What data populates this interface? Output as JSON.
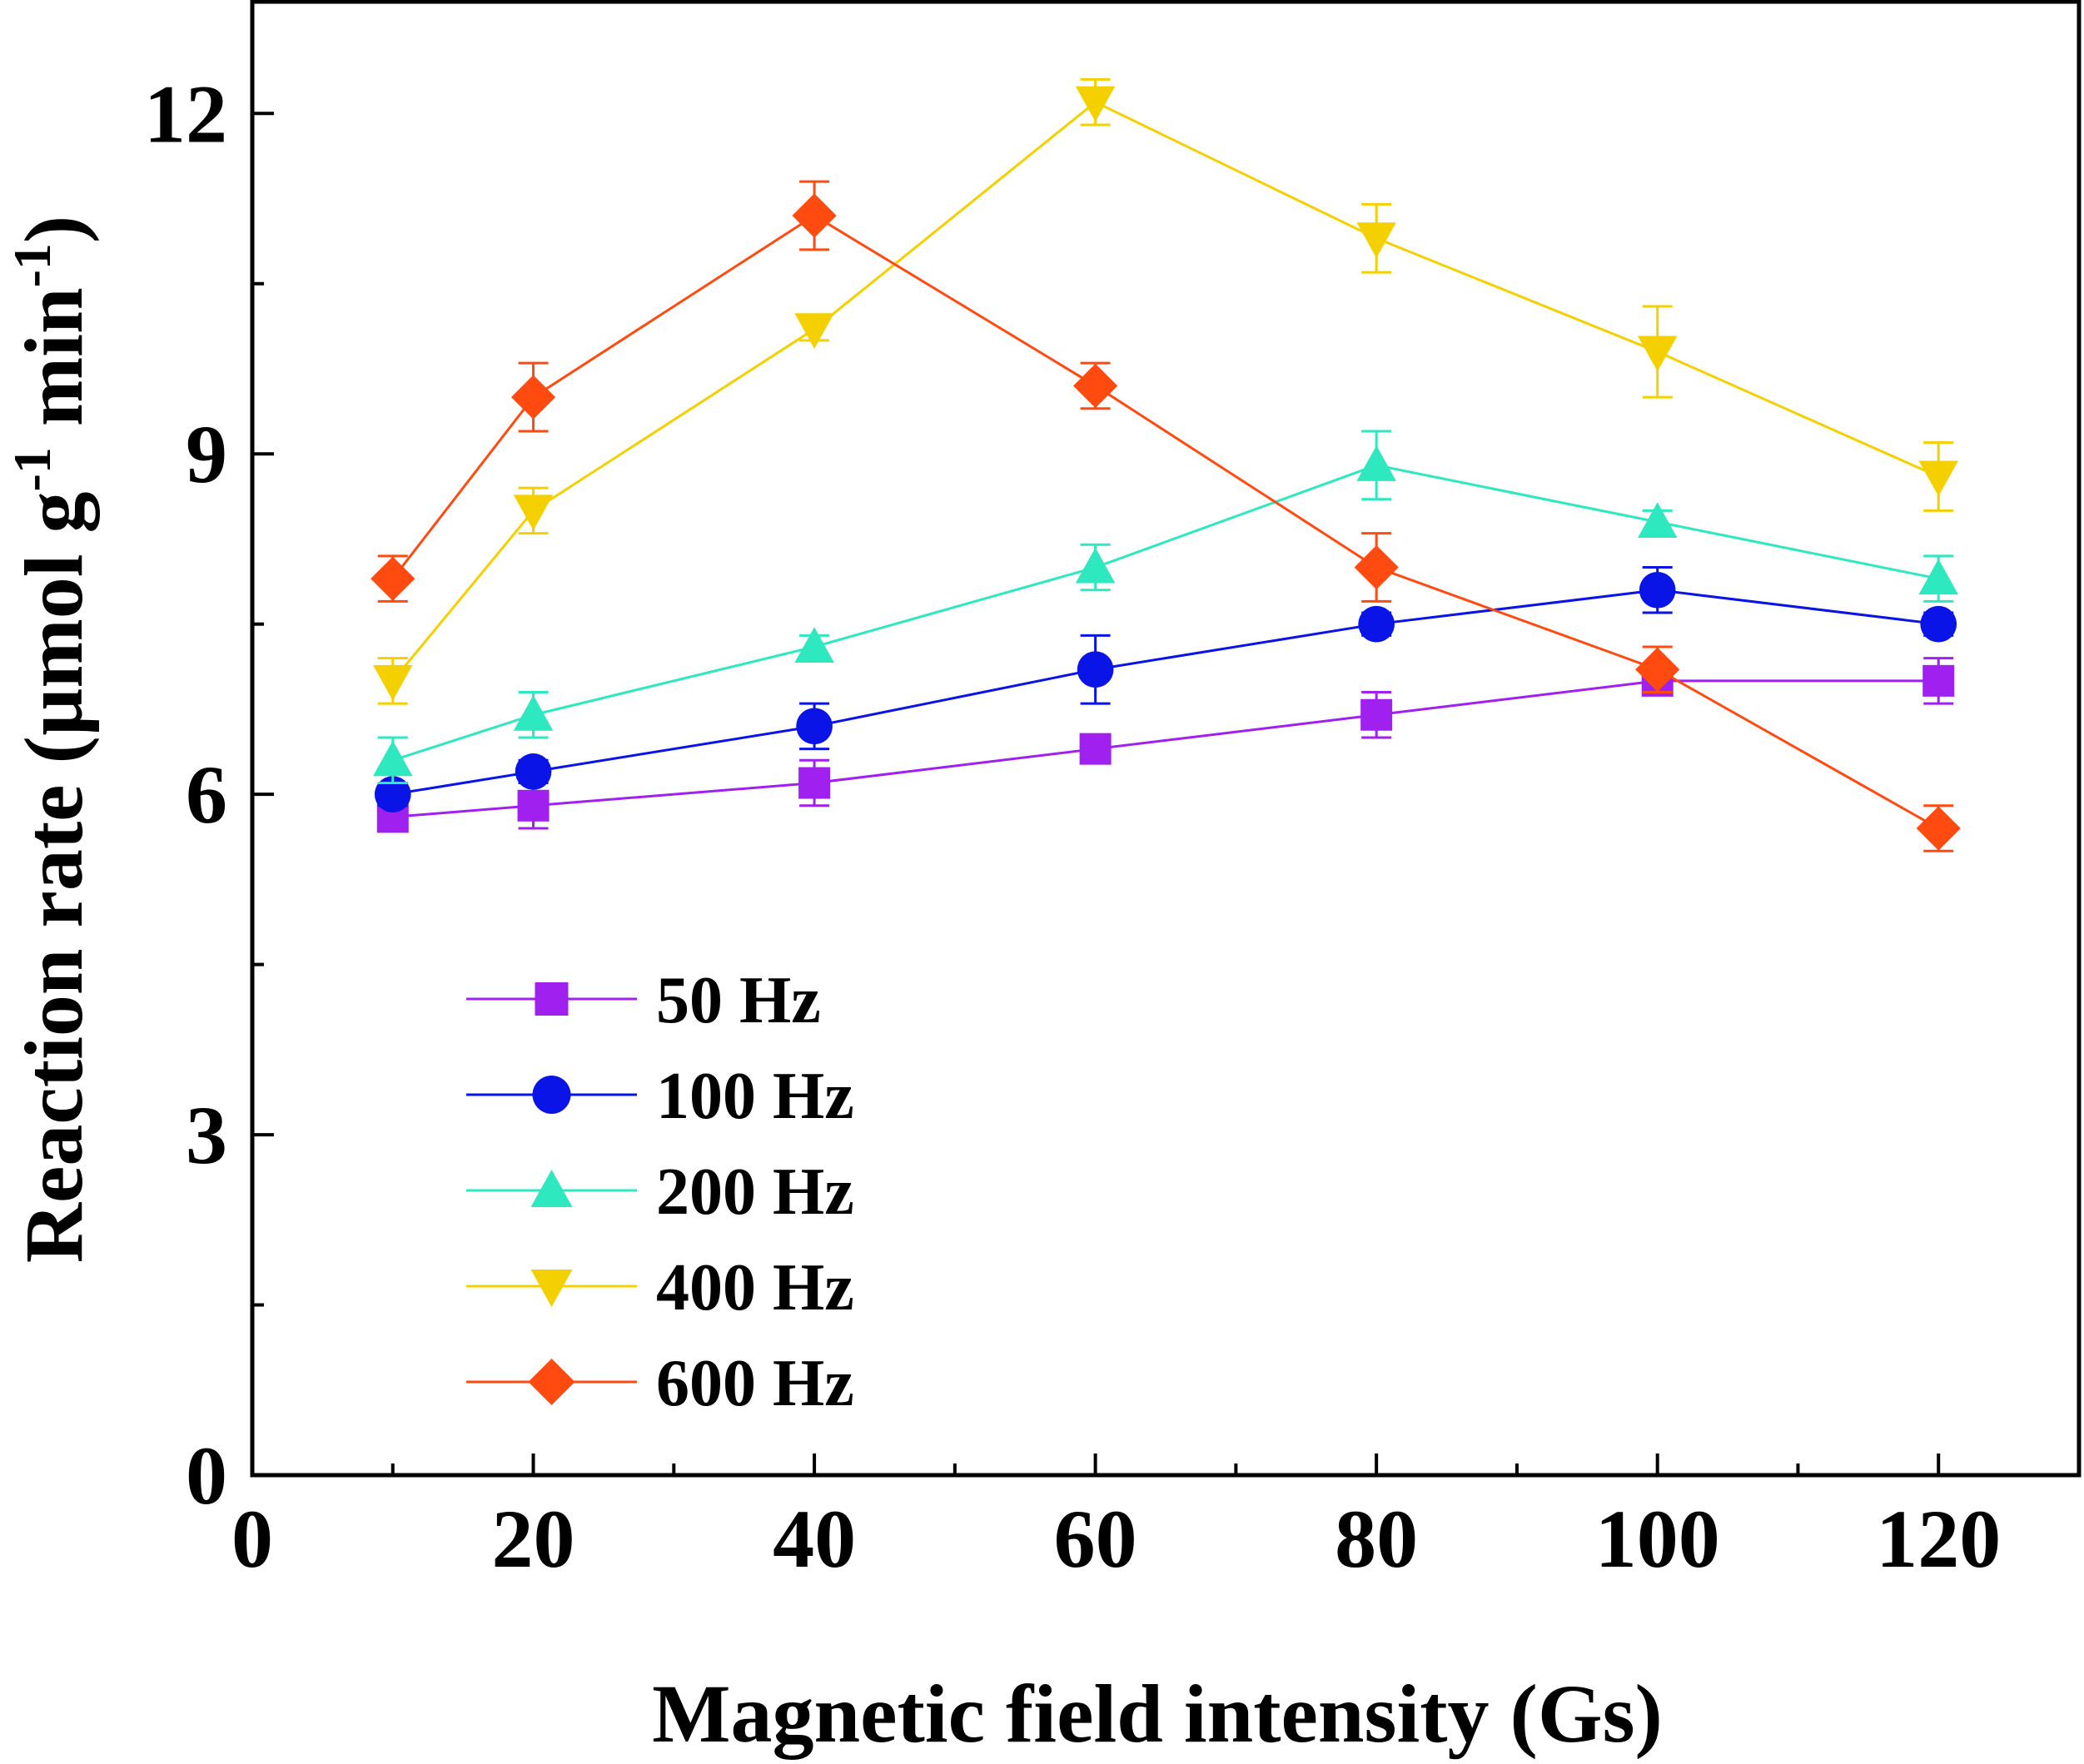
{
  "chart_data": {
    "type": "line",
    "title": "",
    "xlabel": "Magnetic field intensity (Gs)",
    "ylabel_main": "Reaction rate (µmol g",
    "ylabel_sup1": "-1",
    "ylabel_mid": " min",
    "ylabel_sup2": "-1",
    "ylabel_end": ")",
    "xlim": [
      0,
      130
    ],
    "ylim": [
      0,
      13
    ],
    "xticks": [
      0,
      20,
      40,
      60,
      80,
      100,
      120
    ],
    "xtick_labels": [
      "0",
      "20",
      "40",
      "60",
      "80",
      "100",
      "120"
    ],
    "yticks": [
      0,
      3,
      6,
      9,
      12
    ],
    "ytick_labels": [
      "0",
      "3",
      "6",
      "9",
      "12"
    ],
    "x": [
      10,
      20,
      40,
      60,
      80,
      100,
      120
    ],
    "legend_position": "lower-left",
    "series": [
      {
        "name": "50 Hz",
        "color": "#A020F0",
        "marker": "square",
        "values": [
          5.8,
          5.9,
          6.1,
          6.4,
          6.7,
          7.0,
          7.0
        ],
        "errors": [
          0.1,
          0.2,
          0.2,
          0.1,
          0.2,
          0.1,
          0.2
        ]
      },
      {
        "name": "100 Hz",
        "color": "#0A14E6",
        "marker": "circle",
        "values": [
          6.0,
          6.2,
          6.6,
          7.1,
          7.5,
          7.8,
          7.5
        ],
        "errors": [
          0.1,
          0.1,
          0.2,
          0.3,
          0.1,
          0.2,
          0.1
        ]
      },
      {
        "name": "200 Hz",
        "color": "#2EE8C0",
        "marker": "triangle-up",
        "values": [
          6.3,
          6.7,
          7.3,
          8.0,
          8.9,
          8.4,
          7.9
        ],
        "errors": [
          0.2,
          0.2,
          0.1,
          0.2,
          0.3,
          0.1,
          0.2
        ]
      },
      {
        "name": "400 Hz",
        "color": "#F5D000",
        "marker": "triangle-down",
        "values": [
          7.0,
          8.5,
          10.1,
          12.1,
          10.9,
          9.9,
          8.8
        ],
        "errors": [
          0.2,
          0.2,
          0.1,
          0.2,
          0.3,
          0.4,
          0.3
        ]
      },
      {
        "name": "600 Hz",
        "color": "#FF4A10",
        "marker": "diamond",
        "values": [
          7.9,
          9.5,
          11.1,
          9.6,
          8.0,
          7.1,
          5.7
        ],
        "errors": [
          0.2,
          0.3,
          0.3,
          0.2,
          0.3,
          0.2,
          0.2
        ]
      }
    ]
  }
}
